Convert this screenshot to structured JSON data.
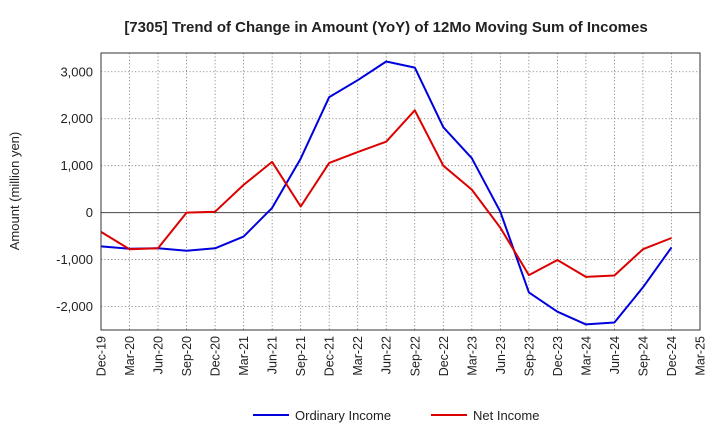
{
  "chart_data": {
    "type": "line",
    "title": "[7305]  Trend of Change in Amount (YoY) of 12Mo Moving Sum of Incomes",
    "ylabel": "Amount (million yen)",
    "xlabel": "",
    "categories": [
      "Dec-19",
      "Mar-20",
      "Jun-20",
      "Sep-20",
      "Dec-20",
      "Mar-21",
      "Jun-21",
      "Sep-21",
      "Dec-21",
      "Mar-22",
      "Jun-22",
      "Sep-22",
      "Dec-22",
      "Mar-23",
      "Jun-23",
      "Sep-23",
      "Dec-23",
      "Mar-24",
      "Jun-24",
      "Sep-24",
      "Dec-24",
      "Mar-25"
    ],
    "ylim": [
      -2500,
      3400
    ],
    "yticks": [
      -2000,
      -1000,
      0,
      1000,
      2000,
      3000
    ],
    "ytick_labels": [
      "-2,000",
      "-1,000",
      "0",
      "1,000",
      "2,000",
      "3,000"
    ],
    "grid": true,
    "legend_position": "bottom-center",
    "series": [
      {
        "name": "Ordinary Income",
        "color": "#0000dd",
        "values": [
          -720,
          -770,
          -760,
          -810,
          -760,
          -510,
          100,
          1150,
          2460,
          2820,
          3220,
          3090,
          1820,
          1160,
          20,
          -1700,
          -2110,
          -2380,
          -2340,
          -1590,
          -740,
          null
        ]
      },
      {
        "name": "Net Income",
        "color": "#dd0000",
        "values": [
          -410,
          -780,
          -760,
          0,
          20,
          590,
          1080,
          130,
          1060,
          1290,
          1510,
          2180,
          1000,
          490,
          -320,
          -1330,
          -1010,
          -1370,
          -1340,
          -780,
          -540,
          null
        ]
      }
    ]
  }
}
